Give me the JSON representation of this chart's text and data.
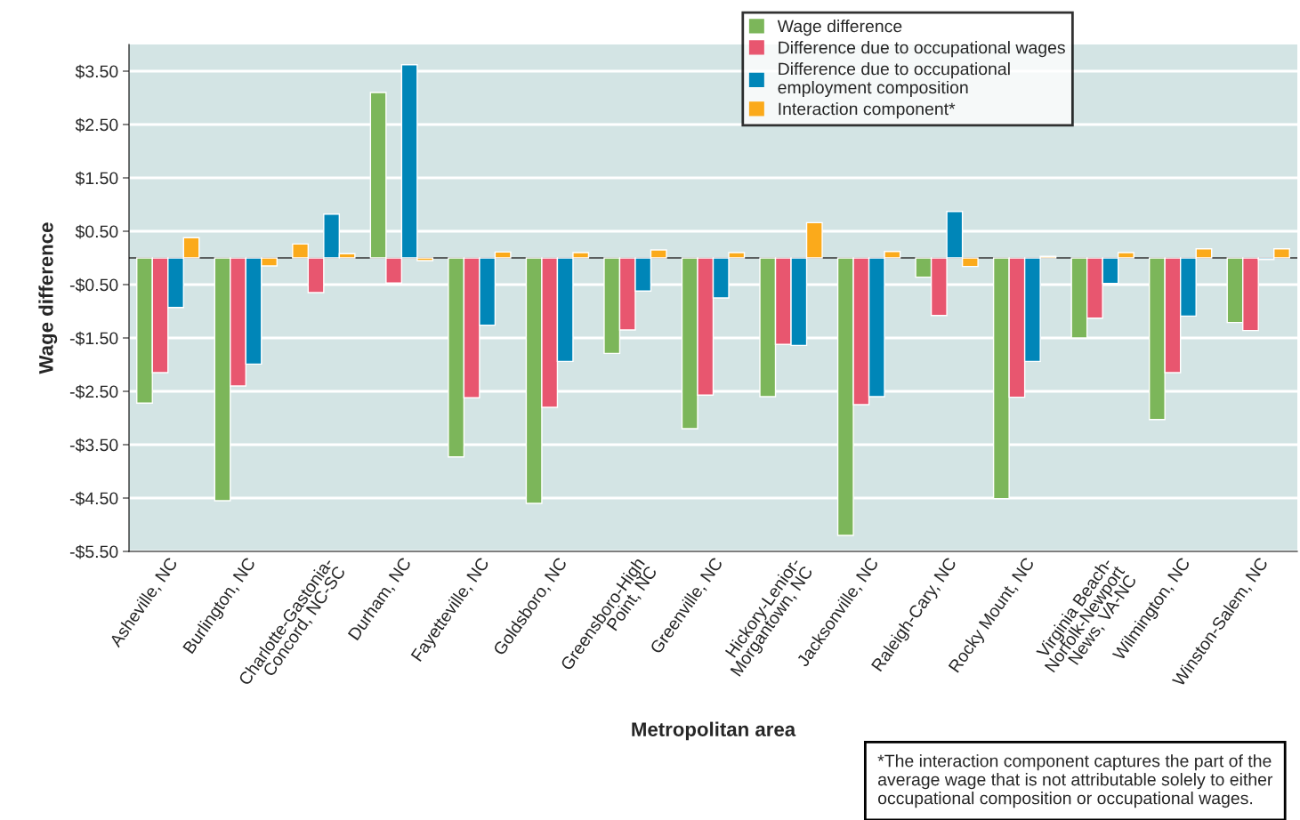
{
  "chart_data": {
    "type": "bar",
    "xlabel": "Metropolitan area",
    "ylabel": "Wage difference",
    "categories": [
      "Asheville, NC",
      "Burlington, NC",
      "Charlotte-Gastonia-\nConcord, NC-SC",
      "Durham, NC",
      "Fayetteville, NC",
      "Goldsboro, NC",
      "Greensboro-High\nPoint, NC",
      "Greenville, NC",
      "Hickory-Lenior-\nMorgantown, NC",
      "Jacksonville, NC",
      "Raleigh-Cary, NC",
      "Rocky Mount, NC",
      "Virginia Beach-\nNorfolk-Newport\nNews, VA-NC",
      "Wilmington, NC",
      "Winston-Salem, NC"
    ],
    "series": [
      {
        "name": "Wage difference",
        "color": "#7cb65a",
        "colors": [
          "#7cb65a",
          "#7cb65a",
          "#fbaa1b",
          "#7cb65a",
          "#7cb65a",
          "#7cb65a",
          "#7cb65a",
          "#7cb65a",
          "#7cb65a",
          "#7cb65a",
          "#7cb65a",
          "#7cb65a",
          "#7cb65a",
          "#7cb65a",
          "#7cb65a"
        ],
        "values": [
          -2.72,
          -4.55,
          0.26,
          3.1,
          -3.73,
          -4.6,
          -1.79,
          -3.2,
          -2.6,
          -5.2,
          -0.36,
          -4.51,
          -1.5,
          -3.03,
          -1.21
        ]
      },
      {
        "name": "Difference due to occupational wages",
        "color": "#e8566f",
        "values": [
          -2.15,
          -2.4,
          -0.65,
          -0.47,
          -2.62,
          -2.8,
          -1.35,
          -2.57,
          -1.62,
          -2.75,
          -1.08,
          -2.61,
          -1.13,
          -2.15,
          -1.36
        ]
      },
      {
        "name": "Difference due to occupational\nemployment composition",
        "color": "#0086b8",
        "values": [
          -0.93,
          -1.99,
          0.82,
          3.62,
          -1.26,
          -1.94,
          -0.62,
          -0.75,
          -1.64,
          -2.6,
          0.87,
          -1.94,
          -0.48,
          -1.09,
          -0.03
        ]
      },
      {
        "name": "Interaction component*",
        "color": "#fbaa1b",
        "values": [
          0.38,
          -0.15,
          0.08,
          -0.05,
          0.11,
          0.1,
          0.15,
          0.1,
          0.66,
          0.12,
          -0.16,
          0.03,
          0.1,
          0.17,
          0.17
        ]
      }
    ],
    "ylim": [
      -5.5,
      4.0
    ],
    "yticks": [
      {
        "value": 3.5,
        "label": "$3.50"
      },
      {
        "value": 2.5,
        "label": "$2.50"
      },
      {
        "value": 1.5,
        "label": "$1.50"
      },
      {
        "value": 0.5,
        "label": "$0.50"
      },
      {
        "value": -0.5,
        "label": "-$0.50"
      },
      {
        "value": -1.5,
        "label": "-$1.50"
      },
      {
        "value": -2.5,
        "label": "-$2.50"
      },
      {
        "value": -3.5,
        "label": "-$3.50"
      },
      {
        "value": -4.5,
        "label": "-$4.50"
      },
      {
        "value": -5.5,
        "label": "-$5.50"
      }
    ],
    "ref_lines": [
      {
        "axis": "y",
        "value": 0,
        "color": "#333333"
      }
    ],
    "grid": "y",
    "legend": "top right",
    "annotations": [
      "*The interaction component captures the part of the average wage that is not attributable solely to either occupational composition or occupational wages."
    ]
  }
}
